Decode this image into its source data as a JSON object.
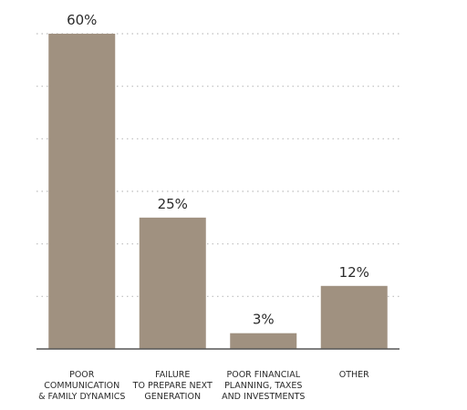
{
  "chart_data": {
    "type": "bar",
    "categories": [
      [
        "POOR",
        "COMMUNICATION",
        "& FAMILY DYNAMICS"
      ],
      [
        "FAILURE",
        "TO PREPARE NEXT",
        "GENERATION"
      ],
      [
        "POOR FINANCIAL",
        "PLANNING, TAXES",
        "AND INVESTMENTS"
      ],
      [
        "OTHER"
      ]
    ],
    "values": [
      60,
      25,
      3,
      12
    ],
    "data_labels": [
      "60%",
      "25%",
      "3%",
      "12%"
    ],
    "title": "",
    "xlabel": "",
    "ylabel": "",
    "ylim": [
      0,
      60
    ],
    "grid": "dotted horizontal",
    "bar_color": "#a09180",
    "grid_color": "#bdbdbd",
    "axis_color": "#555555"
  }
}
